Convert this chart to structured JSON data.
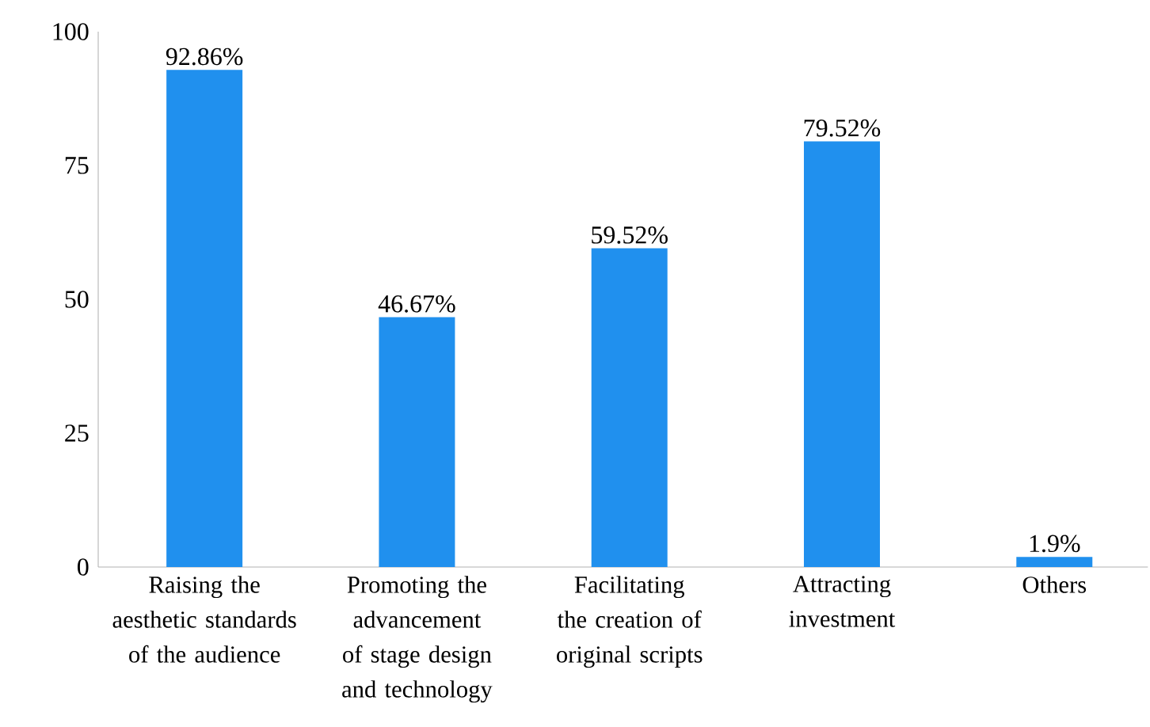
{
  "chart_data": {
    "type": "bar",
    "categories": [
      "Raising the aesthetic standards of the audience",
      "Promoting the advancement of stage design and technology",
      "Facilitating the creation of original scripts",
      "Attracting investment",
      "Others"
    ],
    "values": [
      92.86,
      46.67,
      59.52,
      79.52,
      1.9
    ],
    "value_labels": [
      "92.86%",
      "46.67%",
      "59.52%",
      "79.52%",
      "1.9%"
    ],
    "color": "#2090ee",
    "ylim": [
      0,
      100
    ],
    "yticks": [
      0,
      25,
      50,
      75,
      100
    ],
    "grid": false
  }
}
